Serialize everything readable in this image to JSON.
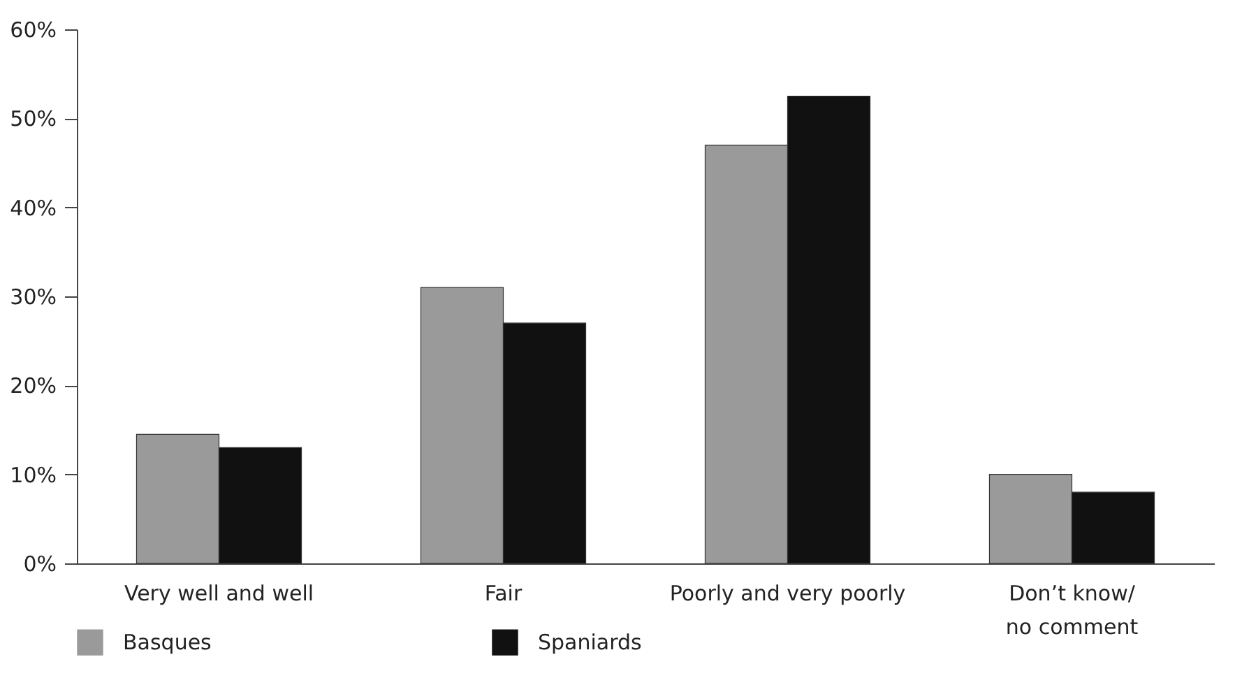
{
  "chart_data": {
    "type": "bar",
    "categories": [
      "Very well and well",
      "Fair",
      "Poorly and very poorly",
      "Don’t know/\nno comment"
    ],
    "series": [
      {
        "name": "Basques",
        "color": "#9a9a9a",
        "values": [
          14.5,
          31,
          47,
          10
        ]
      },
      {
        "name": "Spaniards",
        "color": "#111111",
        "values": [
          13,
          27,
          52.5,
          8
        ]
      }
    ],
    "ylim": [
      0,
      60
    ],
    "yticks": [
      {
        "value": 0,
        "label": "0%"
      },
      {
        "value": 10,
        "label": "10%"
      },
      {
        "value": 20,
        "label": "20%"
      },
      {
        "value": 30,
        "label": "30%"
      },
      {
        "value": 40,
        "label": "40%"
      },
      {
        "value": 50,
        "label": "50%"
      },
      {
        "value": 60,
        "label": "60%"
      }
    ],
    "grid": false,
    "legend": "bottom"
  }
}
